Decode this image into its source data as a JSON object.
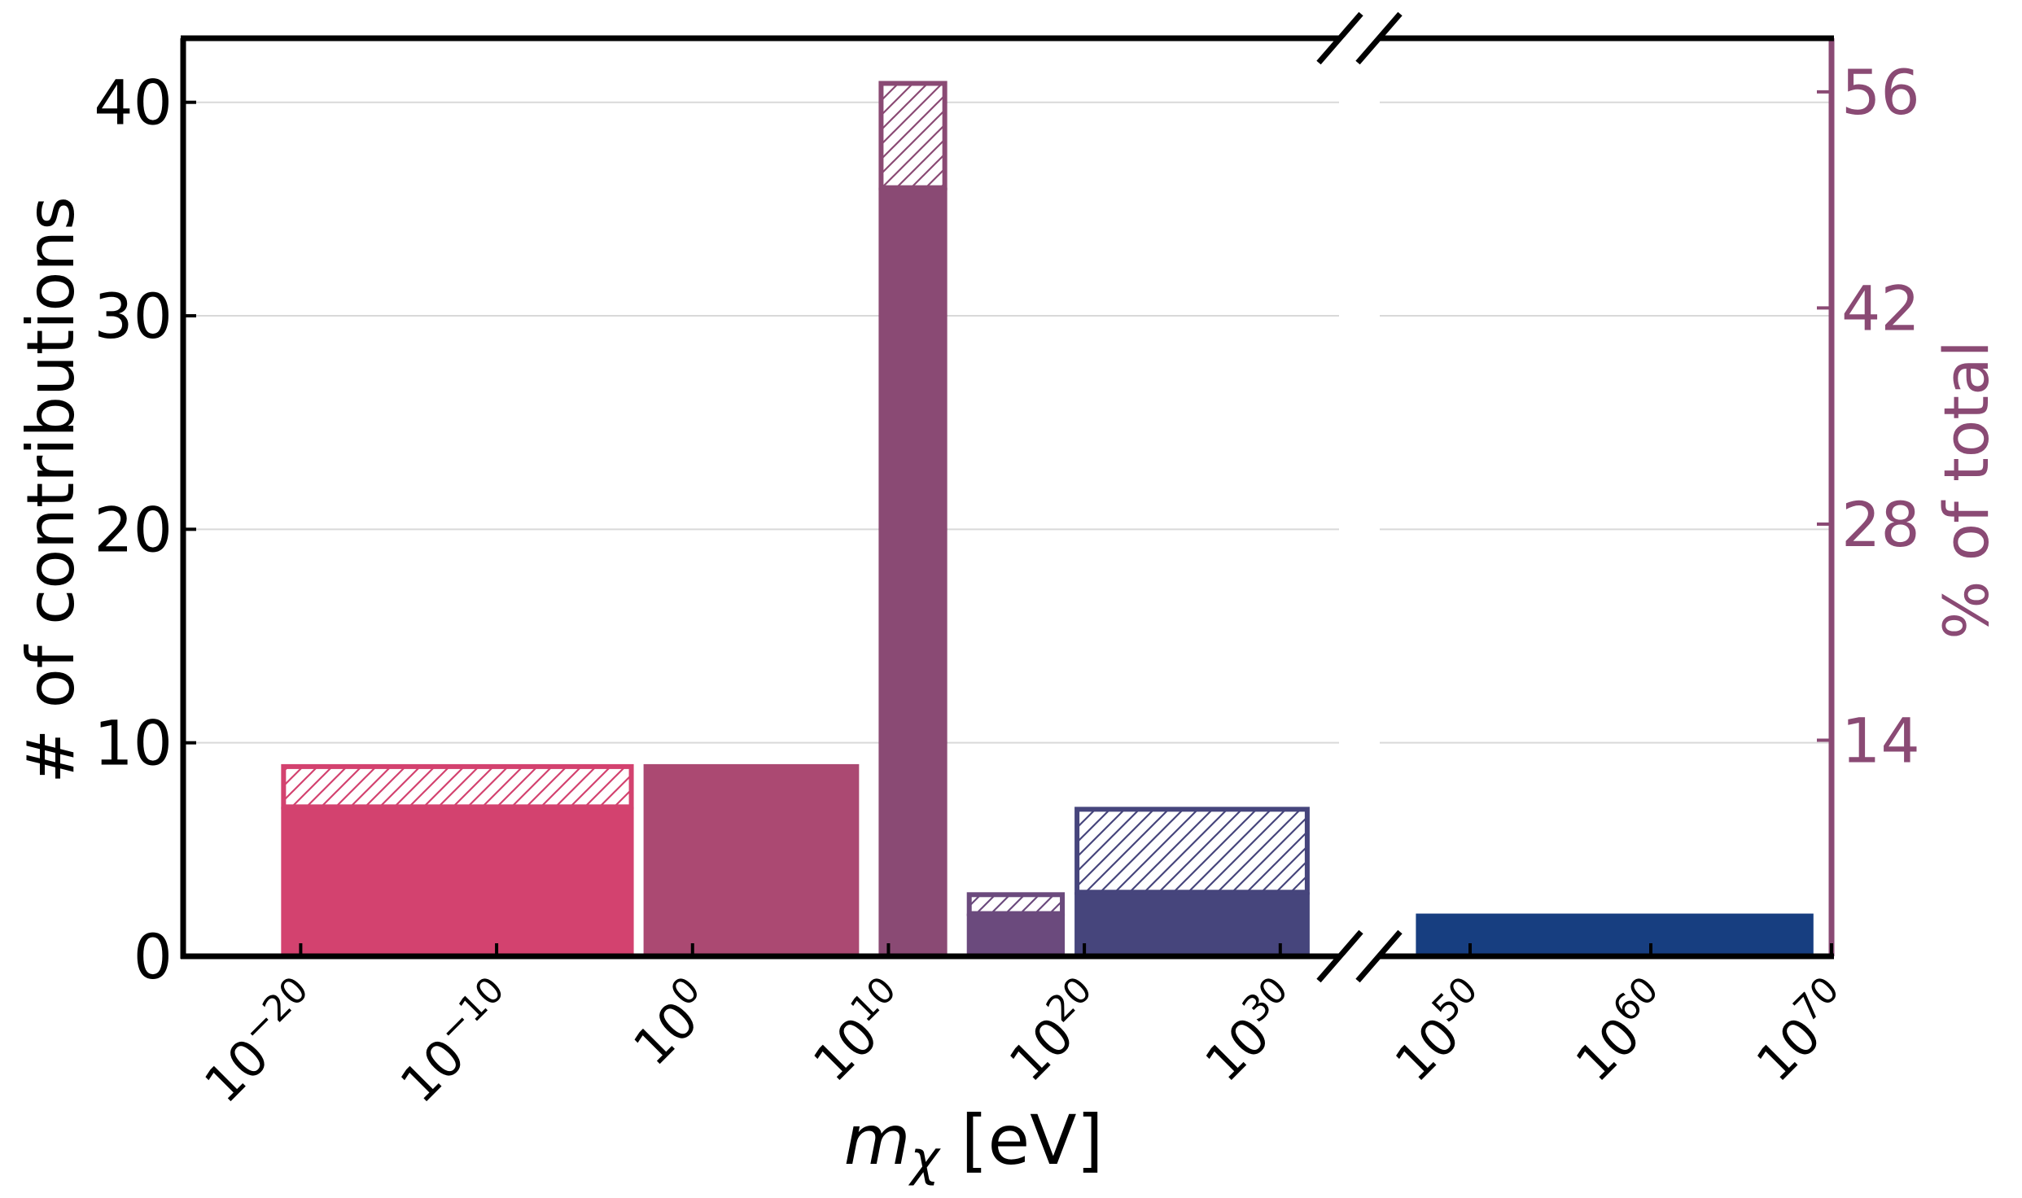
{
  "chart_data": {
    "type": "bar",
    "xlabel_base": "m",
    "xlabel_sub": "χ",
    "xlabel_rest": " [eV]",
    "ylabel": "# of contributions",
    "ylabel_right": "% of total",
    "ylim": [
      0,
      43
    ],
    "yticks": [
      0,
      10,
      20,
      30,
      40
    ],
    "yticks_right": [
      {
        "value": 14,
        "label": "14"
      },
      {
        "value": 28,
        "label": "28"
      },
      {
        "value": 42,
        "label": "42"
      },
      {
        "value": 56,
        "label": "56"
      }
    ],
    "x_scale": "log10",
    "x_break": [
      33,
      45
    ],
    "xlim_left": [
      -26,
      33
    ],
    "xlim_right": [
      45,
      70
    ],
    "xticks": [
      {
        "exp": -20,
        "base": "10",
        "sup": "−20"
      },
      {
        "exp": -10,
        "base": "10",
        "sup": "−10"
      },
      {
        "exp": 0,
        "base": "10",
        "sup": "0"
      },
      {
        "exp": 10,
        "base": "10",
        "sup": "10"
      },
      {
        "exp": 20,
        "base": "10",
        "sup": "20"
      },
      {
        "exp": 30,
        "base": "10",
        "sup": "30"
      },
      {
        "exp": 50,
        "base": "10",
        "sup": "50"
      },
      {
        "exp": 60,
        "base": "10",
        "sup": "60"
      },
      {
        "exp": 70,
        "base": "10",
        "sup": "70"
      }
    ],
    "bars": [
      {
        "x0": -21,
        "x1": -3,
        "solid": 7,
        "hatched": 2,
        "color": "#d3426f"
      },
      {
        "x0": -2.5,
        "x1": 8.5,
        "solid": 9,
        "hatched": 0,
        "color": "#ab4972"
      },
      {
        "x0": 9.5,
        "x1": 13,
        "solid": 36,
        "hatched": 5,
        "color": "#8a4a74"
      },
      {
        "x0": 14,
        "x1": 19,
        "solid": 2,
        "hatched": 1,
        "color": "#6b4a7d"
      },
      {
        "x0": 19.5,
        "x1": 31.5,
        "solid": 3,
        "hatched": 4,
        "color": "#46457c"
      },
      {
        "x0": 47,
        "x1": 69,
        "solid": 2,
        "hatched": 0,
        "color": "#173e80"
      }
    ],
    "grid": true,
    "right_axis_color": "#8a4a74"
  }
}
